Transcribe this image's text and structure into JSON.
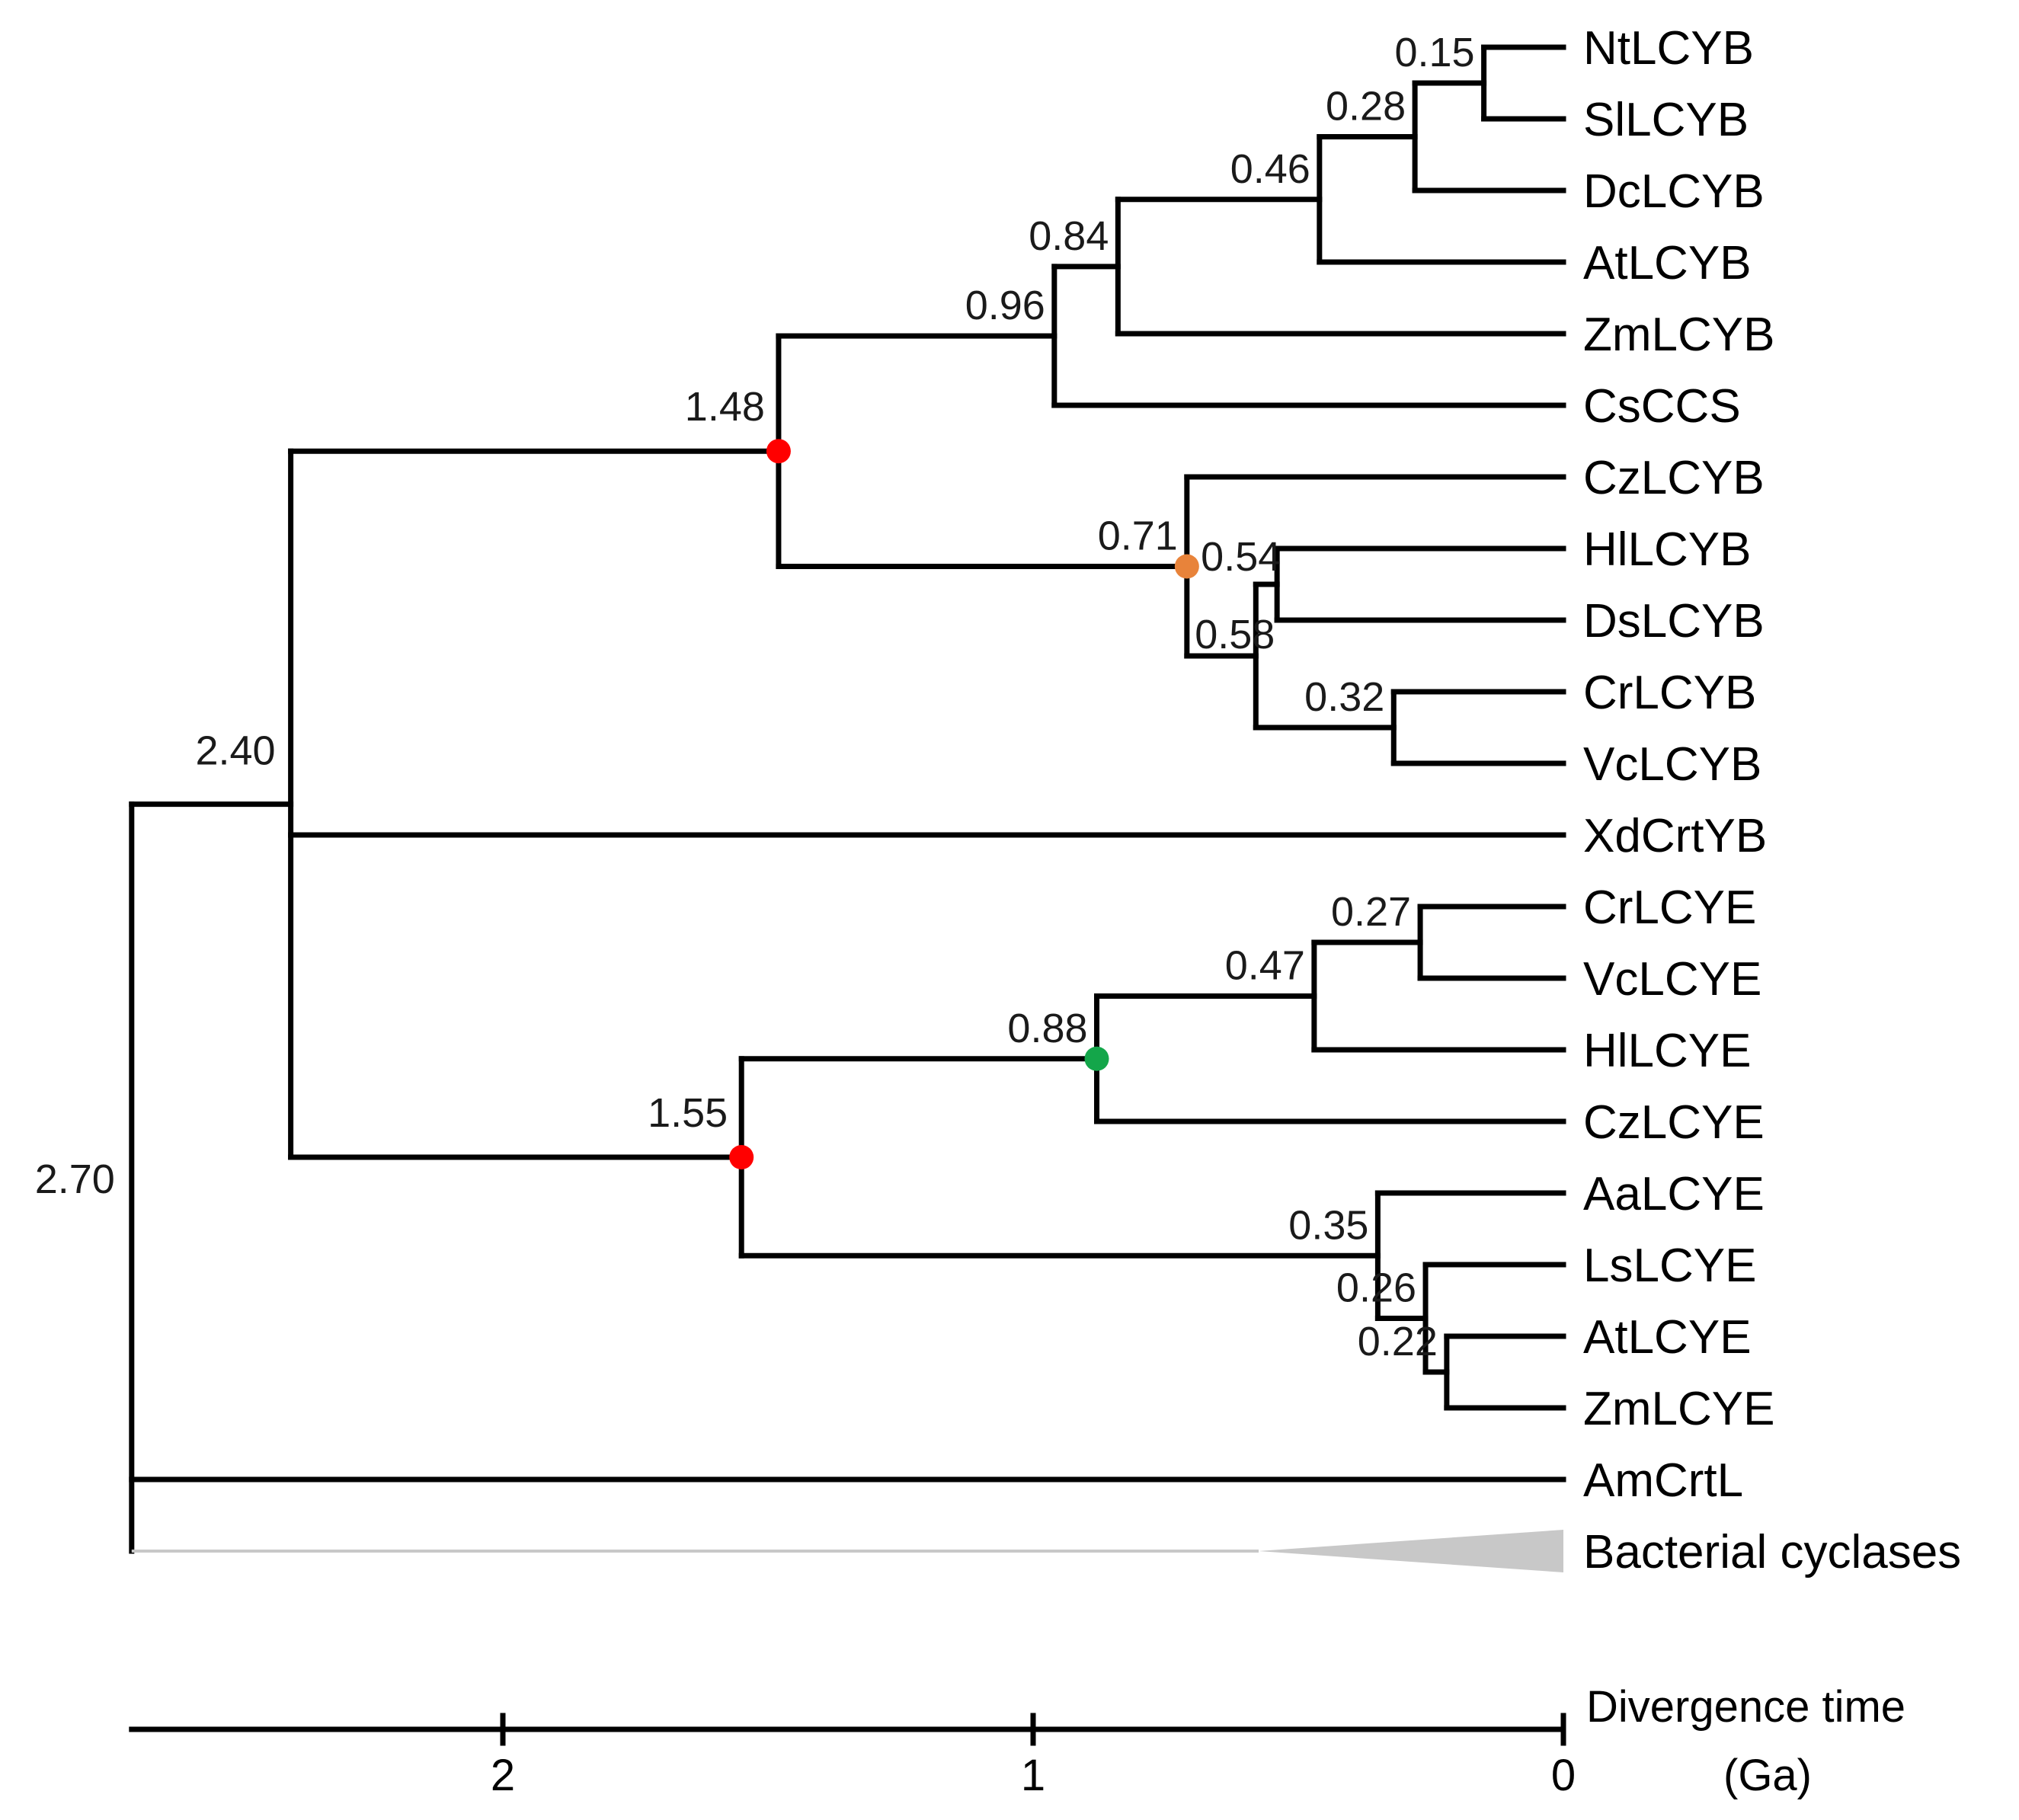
{
  "figure": "time-calibrated phylogenetic tree of lycopene cyclases",
  "taxa": [
    "NtLCYB",
    "SlLCYB",
    "DcLCYB",
    "AtLCYB",
    "ZmLCYB",
    "CsCCS",
    "CzLCYB",
    "HlLCYB",
    "DsLCYB",
    "CrLCYB",
    "VcLCYB",
    "XdCrtYB",
    "CrLCYE",
    "VcLCYE",
    "HlLCYE",
    "CzLCYE",
    "AaLCYE",
    "LsLCYE",
    "AtLCYE",
    "ZmLCYE",
    "AmCrtL"
  ],
  "collapsed_clade": {
    "label": "Bacterial cyclases",
    "color": "#c8c8c8"
  },
  "nodes": [
    {
      "id": "n015",
      "age": 0.15,
      "label": "0.15",
      "children": [
        "NtLCYB",
        "SlLCYB"
      ]
    },
    {
      "id": "n028",
      "age": 0.28,
      "label": "0.28",
      "children": [
        "n015",
        "DcLCYB"
      ]
    },
    {
      "id": "n046",
      "age": 0.46,
      "label": "0.46",
      "children": [
        "n028",
        "AtLCYB"
      ]
    },
    {
      "id": "n084",
      "age": 0.84,
      "label": "0.84",
      "children": [
        "n046",
        "ZmLCYB"
      ]
    },
    {
      "id": "n096",
      "age": 0.96,
      "label": "0.96",
      "children": [
        "n084",
        "CsCCS"
      ]
    },
    {
      "id": "n054",
      "age": 0.54,
      "label": "0.54",
      "children": [
        "HlLCYB",
        "DsLCYB"
      ]
    },
    {
      "id": "n032",
      "age": 0.32,
      "label": "0.32",
      "children": [
        "CrLCYB",
        "VcLCYB"
      ]
    },
    {
      "id": "n058",
      "age": 0.58,
      "label": "0.58",
      "children": [
        "n054",
        "n032"
      ]
    },
    {
      "id": "n071",
      "age": 0.71,
      "label": "0.71",
      "children": [
        "CzLCYB",
        "n058"
      ],
      "marker": "#e8833a"
    },
    {
      "id": "n148",
      "age": 1.48,
      "label": "1.48",
      "children": [
        "n096",
        "n071"
      ],
      "marker": "#ff0000"
    },
    {
      "id": "n027",
      "age": 0.27,
      "label": "0.27",
      "children": [
        "CrLCYE",
        "VcLCYE"
      ]
    },
    {
      "id": "n047",
      "age": 0.47,
      "label": "0.47",
      "children": [
        "n027",
        "HlLCYE"
      ]
    },
    {
      "id": "n088",
      "age": 0.88,
      "label": "0.88",
      "children": [
        "n047",
        "CzLCYE"
      ],
      "marker": "#14a64a"
    },
    {
      "id": "n022",
      "age": 0.22,
      "label": "0.22",
      "children": [
        "AtLCYE",
        "ZmLCYE"
      ]
    },
    {
      "id": "n026",
      "age": 0.26,
      "label": "0.26",
      "children": [
        "LsLCYE",
        "n022"
      ]
    },
    {
      "id": "n035",
      "age": 0.35,
      "label": "0.35",
      "children": [
        "AaLCYE",
        "n026"
      ]
    },
    {
      "id": "n155",
      "age": 1.55,
      "label": "1.55",
      "children": [
        "n088",
        "n035"
      ],
      "marker": "#ff0000"
    },
    {
      "id": "n240",
      "age": 2.4,
      "label": "2.40",
      "children": [
        "n148",
        "XdCrtYB",
        "n155"
      ]
    },
    {
      "id": "n270",
      "age": 2.7,
      "label": "2.70",
      "children": [
        "n240",
        "AmCrtL",
        "collapsed"
      ]
    }
  ],
  "axis": {
    "title_line1": "Divergence time",
    "title_line2": "(Ga)",
    "ticks": [
      {
        "value": 2,
        "label": "2"
      },
      {
        "value": 1,
        "label": "1"
      },
      {
        "value": 0,
        "label": "0"
      }
    ],
    "range": [
      2.7,
      0
    ]
  }
}
